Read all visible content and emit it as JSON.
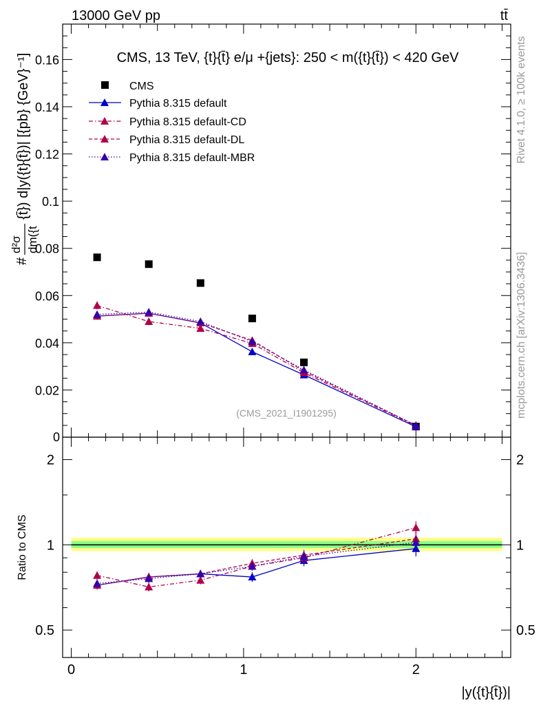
{
  "header": {
    "energy_label": "13000 GeV pp",
    "process_label": "tt̄"
  },
  "side_labels": {
    "rivet": "Rivet 4.1.0, ≥ 100k events",
    "mcplots": "mcplots.cern.ch [arXiv:1306.3436]"
  },
  "colors": {
    "cms": "#000000",
    "default": "#0000cc",
    "cd": "#b0004a",
    "dl": "#b0004a",
    "mbr": "#3300aa",
    "band_outer": "#ffff88",
    "band_inner": "#88ff88"
  },
  "chart_data": [
    {
      "type": "line",
      "panel": "main",
      "title": "CMS, 13 TeV, {t}{t̄} e/μ +{jets}: 250 < m({t}{t̄}) < 420 GeV",
      "ylabel_prefix": "#",
      "ylabel_fraction_num": "d²σ",
      "ylabel_fraction_den": "dm({t",
      "ylabel_rest": "{t̄}) d|y({t}{t̄})| [{pb} {GeV}⁻¹]",
      "xlabel": "|y({t}{t̄})|",
      "xlim": [
        -0.05,
        2.55
      ],
      "ylim": [
        0,
        0.175
      ],
      "yticks": [
        0.02,
        0.04,
        0.06,
        0.08,
        0.1,
        0.12,
        0.14,
        0.16
      ],
      "ytick_labels": [
        "0.02",
        "0.04",
        "0.06",
        "0.08",
        "0.1",
        "0.12",
        "0.14",
        "0.16"
      ],
      "ybottom_label": "0",
      "watermark": "(CMS_2021_I1901295)",
      "x": [
        0.15,
        0.45,
        0.75,
        1.05,
        1.35,
        2.0
      ],
      "series": [
        {
          "name": "CMS",
          "style": "data",
          "values": [
            0.0762,
            0.0733,
            0.0653,
            0.0503,
            0.0317,
            0.0045
          ]
        },
        {
          "name": "Pythia 8.315 default",
          "style": "solid",
          "values": [
            0.0513,
            0.0525,
            0.0484,
            0.0362,
            0.0264,
            0.0044
          ],
          "errors": [
            0.0015,
            0.0015,
            0.0015,
            0.0013,
            0.0011,
            0.0005
          ]
        },
        {
          "name": "Pythia 8.315 default-CD",
          "style": "dashdot",
          "values": [
            0.0558,
            0.049,
            0.0461,
            0.0397,
            0.0273,
            0.0048
          ],
          "errors": [
            0.0017,
            0.0015,
            0.0015,
            0.0013,
            0.0011,
            0.0005
          ]
        },
        {
          "name": "Pythia 8.315 default-DL",
          "style": "dashed",
          "values": [
            0.0513,
            0.0525,
            0.0484,
            0.041,
            0.028,
            0.005
          ],
          "errors": [
            0.0015,
            0.0015,
            0.0015,
            0.0013,
            0.0011,
            0.0005
          ]
        },
        {
          "name": "Pythia 8.315 default-MBR",
          "style": "dotted",
          "values": [
            0.052,
            0.053,
            0.049,
            0.0405,
            0.0285,
            0.005
          ],
          "errors": [
            0.0015,
            0.0015,
            0.0015,
            0.0013,
            0.0011,
            0.0005
          ]
        }
      ]
    },
    {
      "type": "line",
      "panel": "ratio",
      "ylabel": "Ratio to CMS",
      "yscale": "log",
      "ylim": [
        0.4,
        2.4
      ],
      "yticks": [
        0.5,
        1,
        2
      ],
      "ytick_labels": [
        "0.5",
        "1",
        "2"
      ],
      "xticks": [
        0,
        1,
        2
      ],
      "xtick_labels": [
        "0",
        "1",
        "2"
      ],
      "band_outer": [
        0.95,
        1.06
      ],
      "band_inner": [
        0.975,
        1.03
      ],
      "x": [
        0.15,
        0.45,
        0.75,
        1.05,
        1.35,
        2.0
      ],
      "series": [
        {
          "name": "Pythia 8.315 default",
          "style": "solid",
          "values": [
            0.72,
            0.77,
            0.79,
            0.77,
            0.88,
            0.97
          ],
          "errors": [
            0.025,
            0.025,
            0.025,
            0.03,
            0.04,
            0.06
          ]
        },
        {
          "name": "Pythia 8.315 default-CD",
          "style": "dashdot",
          "values": [
            0.78,
            0.71,
            0.75,
            0.84,
            0.9,
            1.15
          ],
          "errors": [
            0.025,
            0.025,
            0.025,
            0.03,
            0.04,
            0.06
          ]
        },
        {
          "name": "Pythia 8.315 default-DL",
          "style": "dashed",
          "values": [
            0.72,
            0.77,
            0.79,
            0.86,
            0.92,
            1.05
          ],
          "errors": [
            0.025,
            0.025,
            0.025,
            0.03,
            0.04,
            0.06
          ]
        },
        {
          "name": "Pythia 8.315 default-MBR",
          "style": "dotted",
          "values": [
            0.73,
            0.76,
            0.79,
            0.84,
            0.91,
            1.02
          ],
          "errors": [
            0.025,
            0.025,
            0.025,
            0.03,
            0.04,
            0.06
          ]
        }
      ]
    }
  ]
}
